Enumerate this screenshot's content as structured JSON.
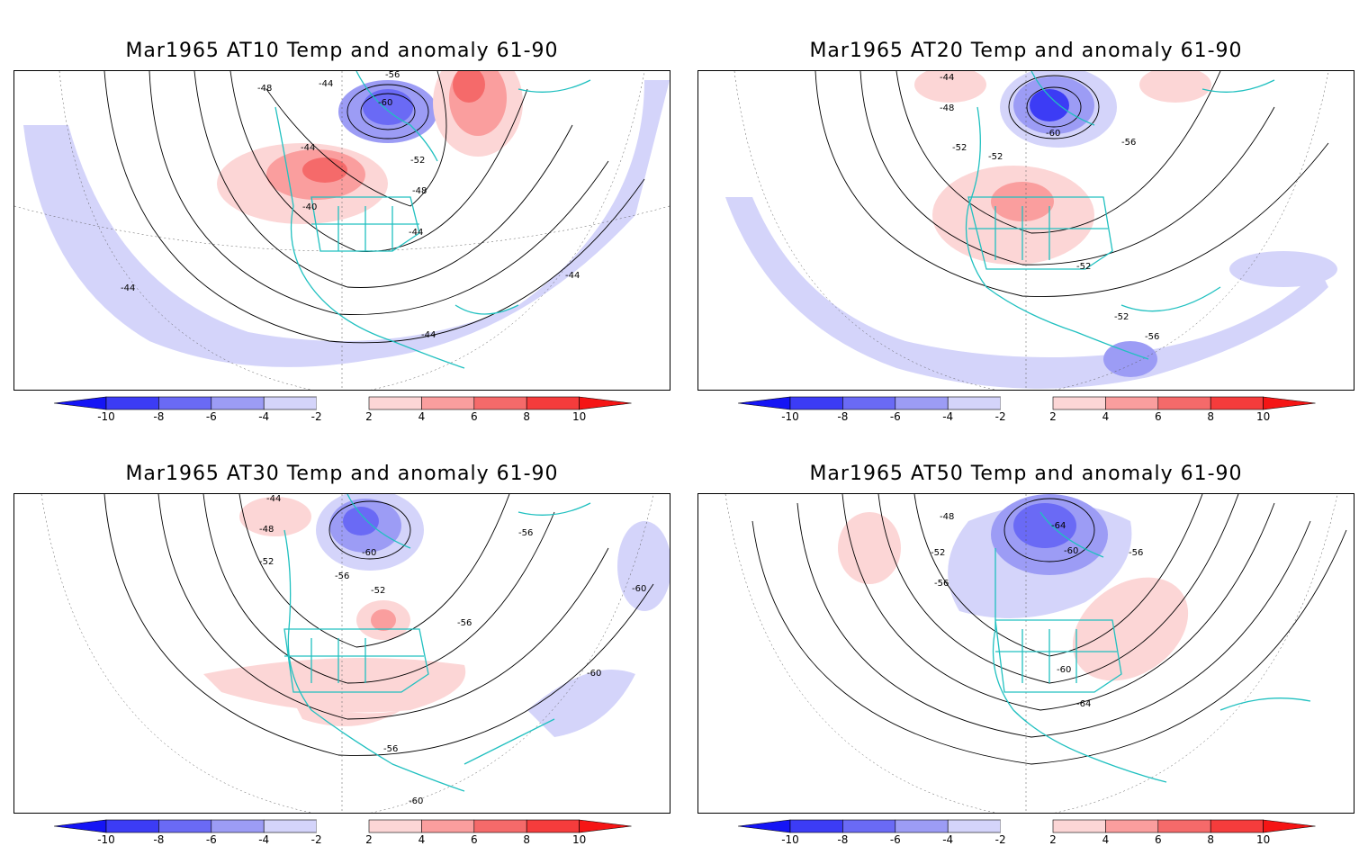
{
  "panels": [
    {
      "title": "Mar1965 AT10 Temp and anomaly 61-90",
      "contour_labels": [
        "-44",
        "-48",
        "-56",
        "-60",
        "-44",
        "-52",
        "-48",
        "-40",
        "-44",
        "-44",
        "-44",
        "-44"
      ]
    },
    {
      "title": "Mar1965 AT20 Temp and anomaly 61-90",
      "contour_labels": [
        "-44",
        "-48",
        "-60",
        "-52",
        "-56",
        "-52",
        "-52",
        "-52",
        "-56"
      ]
    },
    {
      "title": "Mar1965 AT30 Temp and anomaly 61-90",
      "contour_labels": [
        "-44",
        "-48",
        "-52",
        "-56",
        "-60",
        "-52",
        "-56",
        "-56",
        "-60",
        "-60",
        "-56",
        "-60"
      ]
    },
    {
      "title": "Mar1965 AT50 Temp and anomaly 61-90",
      "contour_labels": [
        "-48",
        "-64",
        "-52",
        "-60",
        "-56",
        "-56",
        "-60",
        "-64"
      ]
    }
  ],
  "colorbar": {
    "tick_labels": [
      "-10",
      "-8",
      "-6",
      "-4",
      "-2",
      "2",
      "4",
      "6",
      "8",
      "10"
    ],
    "colors": [
      "#1515f5",
      "#3c3cf5",
      "#6a6af5",
      "#9c9cf5",
      "#d4d4fa",
      "#ffffff",
      "#fcd6d6",
      "#fa9e9e",
      "#f56a6a",
      "#f53c3c",
      "#f51515"
    ]
  },
  "colors": {
    "coastline": "#20c0c0",
    "frame": "#000000"
  }
}
